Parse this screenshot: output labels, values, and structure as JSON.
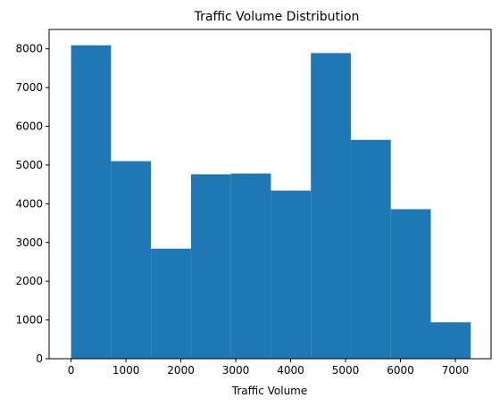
{
  "chart_data": {
    "type": "bar",
    "title": "Traffic Volume Distribution",
    "xlabel": "Traffic Volume",
    "ylabel": "",
    "bar_color": "#1f77b4",
    "xlim": [
      -400,
      7650
    ],
    "ylim": [
      0,
      8500
    ],
    "x_ticks": [
      0,
      1000,
      2000,
      3000,
      4000,
      5000,
      6000,
      7000
    ],
    "y_ticks": [
      0,
      1000,
      2000,
      3000,
      4000,
      5000,
      6000,
      7000,
      8000
    ],
    "bin_edges": [
      0,
      728,
      1456,
      2184,
      2912,
      3640,
      4368,
      5096,
      5824,
      6552,
      7280
    ],
    "values": [
      8090,
      5100,
      2840,
      4760,
      4780,
      4340,
      7890,
      5650,
      3860,
      940
    ]
  }
}
